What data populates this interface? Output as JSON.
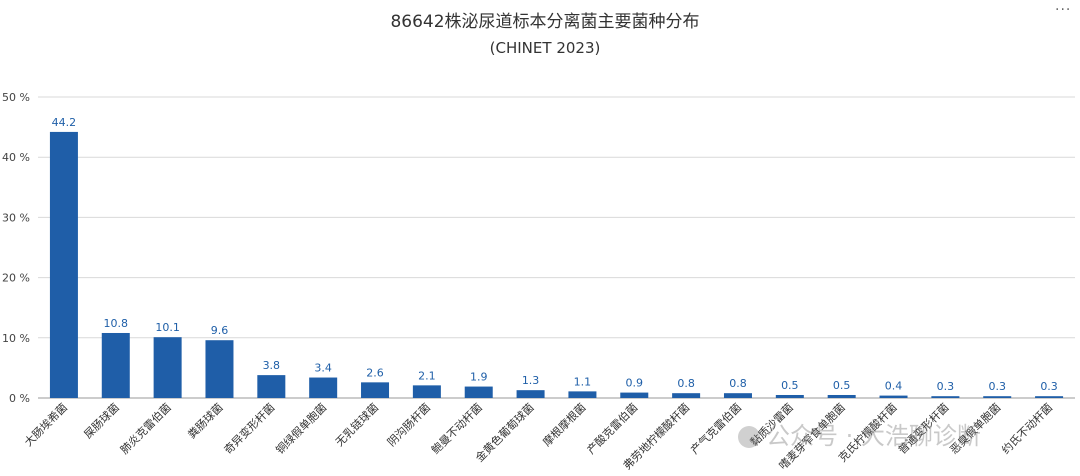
{
  "chart_data": {
    "type": "bar",
    "title": "86642株泌尿道标本分离菌主要菌种分布",
    "subtitle": "(CHINET 2023)",
    "xlabel": "",
    "ylabel": "",
    "ylim": [
      0,
      50
    ],
    "yticks": [
      0,
      10,
      20,
      30,
      40,
      50
    ],
    "ytick_suffix": "%",
    "grid": true,
    "bar_color": "#1f5ea8",
    "categories": [
      "大肠埃希菌",
      "屎肠球菌",
      "肺炎克雷伯菌",
      "粪肠球菌",
      "奇异变形杆菌",
      "铜绿假单胞菌",
      "无乳链球菌",
      "阴沟肠杆菌",
      "鲍曼不动杆菌",
      "金黄色葡萄球菌",
      "摩根摩根菌",
      "产酸克雷伯菌",
      "弗劳地柠檬酸杆菌",
      "产气克雷伯菌",
      "黏质沙雷菌",
      "嗜麦芽窄食单胞菌",
      "克氏柠檬酸杆菌",
      "普通变形杆菌",
      "恶臭假单胞菌",
      "约氏不动杆菌"
    ],
    "values": [
      44.2,
      10.8,
      10.1,
      9.6,
      3.8,
      3.4,
      2.6,
      2.1,
      1.9,
      1.3,
      1.1,
      0.9,
      0.8,
      0.8,
      0.5,
      0.5,
      0.4,
      0.3,
      0.3,
      0.3
    ]
  },
  "watermark": "公众号 · 大浩聊诊断",
  "menu_glyph": "···"
}
